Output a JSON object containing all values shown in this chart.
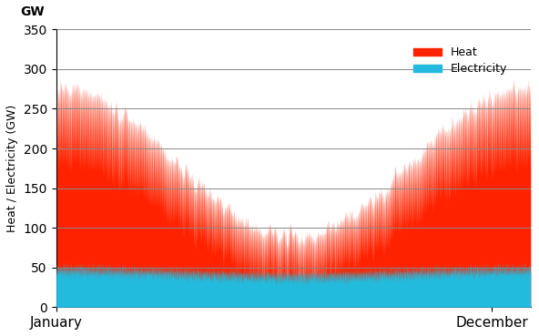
{
  "ylabel": "Heat / Electricity (GW)",
  "gw_label": "GW",
  "xlabel_left": "January",
  "xlabel_right": "December",
  "ylim": [
    0,
    350
  ],
  "yticks": [
    0,
    50,
    100,
    150,
    200,
    250,
    300,
    350
  ],
  "heat_color": "#FF2200",
  "electricity_color": "#22BBDD",
  "legend_heat": "Heat",
  "legend_electricity": "Electricity",
  "background_color": "#ffffff",
  "grid_color": "#888888"
}
